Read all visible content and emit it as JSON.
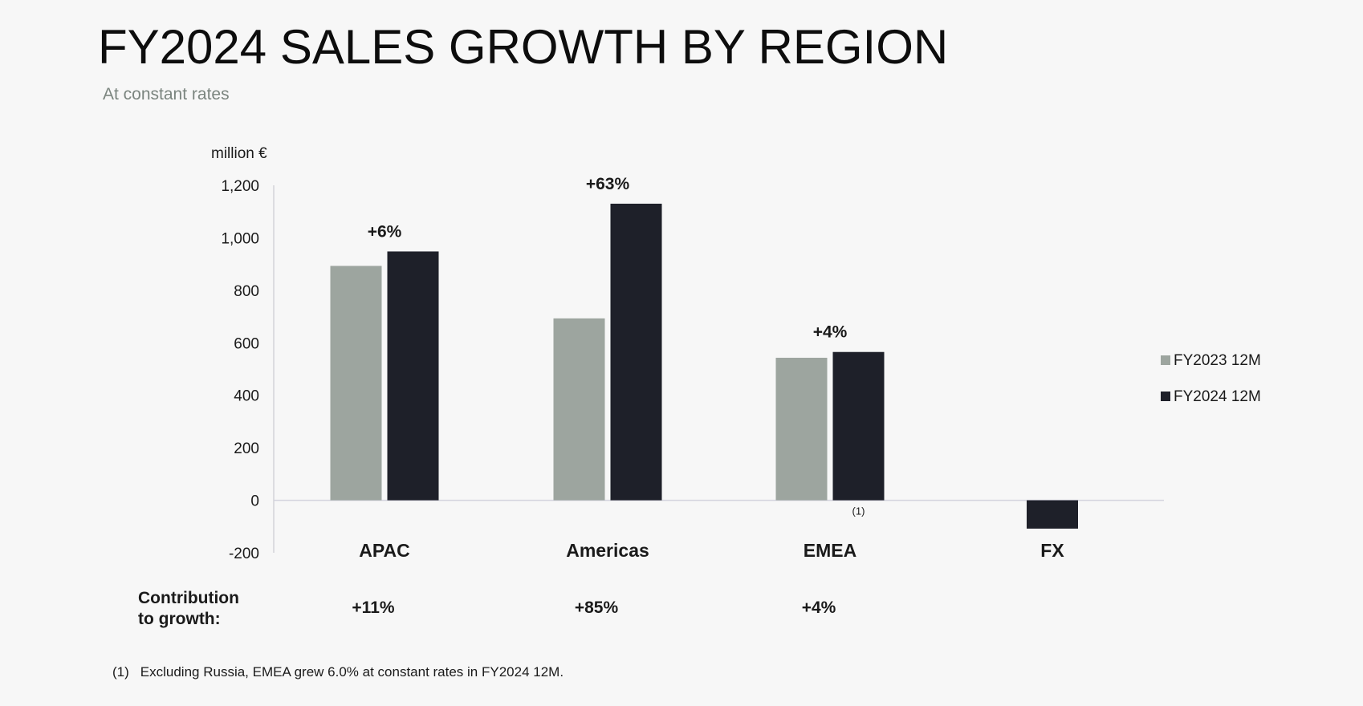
{
  "header": {
    "title": "FY2024 SALES GROWTH BY REGION",
    "subtitle": "At constant rates"
  },
  "chart_data": {
    "type": "bar",
    "unit_label": "million €",
    "ylim": [
      -200,
      1200
    ],
    "yticks": [
      -200,
      0,
      200,
      400,
      600,
      800,
      1000,
      1200
    ],
    "ytick_labels": [
      "-200",
      "0",
      "200",
      "400",
      "600",
      "800",
      "1,000",
      "1,200"
    ],
    "categories": [
      "APAC",
      "Americas",
      "EMEA",
      "FX"
    ],
    "series": [
      {
        "name": "FY2023 12M",
        "color": "#9da59f",
        "values": [
          893,
          693,
          543,
          null
        ]
      },
      {
        "name": "FY2024 12M",
        "color": "#1e2029",
        "values": [
          948,
          1130,
          565,
          -108
        ]
      }
    ],
    "growth_labels": [
      "+6%",
      "+63%",
      "+4%",
      ""
    ],
    "footnote_ref": [
      "",
      "",
      "(1)",
      ""
    ],
    "contribution": {
      "label_line1": "Contribution",
      "label_line2": "to growth:",
      "values": [
        "+11%",
        "+85%",
        "+4%",
        ""
      ]
    },
    "legend_position": "right",
    "grid": false
  },
  "footnote": {
    "mark": "(1)",
    "text": "Excluding Russia, EMEA grew 6.0% at constant rates in FY2024 12M."
  }
}
